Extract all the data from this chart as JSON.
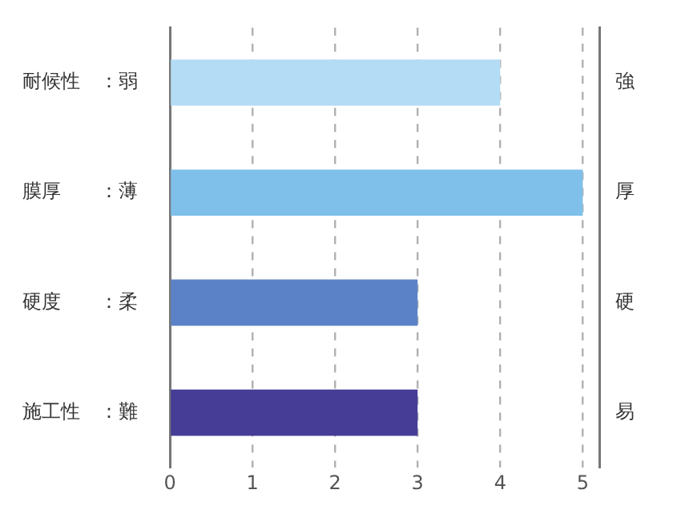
{
  "chart_data": {
    "type": "bar",
    "orientation": "horizontal",
    "categories": [
      "耐候性　：弱",
      "膜厚　　：薄",
      "硬度　　：柔",
      "施工性　：難"
    ],
    "y2_categories": [
      "強",
      "厚",
      "硬",
      "易"
    ],
    "values": [
      4,
      5,
      3,
      3
    ],
    "colors": [
      "#b4dcf4",
      "#7fc0ea",
      "#5b82c6",
      "#453d96"
    ],
    "xlim": [
      0,
      5.2
    ],
    "xticks": [
      0,
      1,
      2,
      3,
      4,
      5
    ],
    "grid": "x",
    "legend": false
  }
}
